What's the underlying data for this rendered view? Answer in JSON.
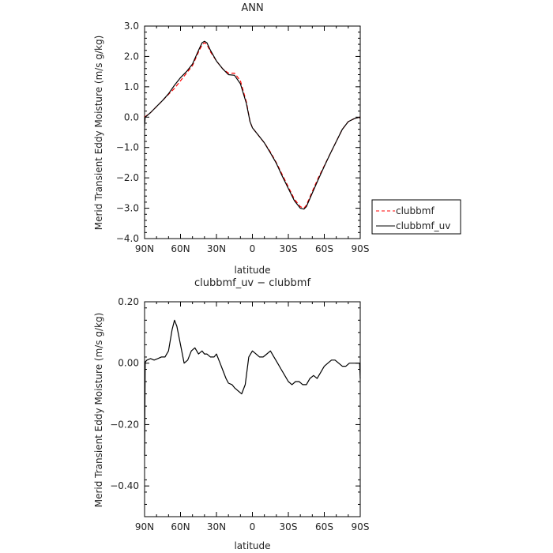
{
  "chart_data": [
    {
      "type": "line",
      "title": "ANN",
      "xlabel": "latitude",
      "ylabel": "Merid Transient Eddy Moisture (m/s g/kg)",
      "xlim": [
        90,
        -90
      ],
      "ylim": [
        -4.0,
        3.0
      ],
      "x_ticks": [
        90,
        60,
        30,
        0,
        -30,
        -60,
        -90
      ],
      "x_tick_labels": [
        "90N",
        "60N",
        "30N",
        "0",
        "30S",
        "60S",
        "90S"
      ],
      "y_ticks": [
        3.0,
        2.0,
        1.0,
        0.0,
        -1.0,
        -2.0,
        -3.0,
        -4.0
      ],
      "y_tick_labels": [
        "3.0",
        "2.0",
        "1.0",
        "0.0",
        "−1.0",
        "−2.0",
        "−3.0",
        "−4.0"
      ],
      "legend_position": "right",
      "series": [
        {
          "name": "clubbmf",
          "color": "#ff0000",
          "dash": true,
          "x": [
            90,
            85,
            80,
            75,
            70,
            65,
            60,
            55,
            50,
            45,
            42,
            40,
            38,
            35,
            30,
            25,
            20,
            15,
            10,
            5,
            2,
            0,
            -5,
            -10,
            -15,
            -20,
            -25,
            -30,
            -35,
            -40,
            -43,
            -45,
            -50,
            -55,
            -60,
            -65,
            -70,
            -75,
            -80,
            -85,
            -90
          ],
          "y": [
            0.0,
            0.15,
            0.35,
            0.55,
            0.75,
            0.95,
            1.2,
            1.45,
            1.7,
            2.15,
            2.38,
            2.45,
            2.4,
            2.15,
            1.85,
            1.6,
            1.45,
            1.45,
            1.2,
            0.5,
            -0.15,
            -0.35,
            -0.6,
            -0.85,
            -1.15,
            -1.5,
            -1.9,
            -2.3,
            -2.7,
            -2.95,
            -3.0,
            -2.9,
            -2.45,
            -2.0,
            -1.6,
            -1.2,
            -0.8,
            -0.4,
            -0.15,
            -0.05,
            0.0
          ]
        },
        {
          "name": "clubbmf_uv",
          "color": "#000000",
          "dash": false,
          "x": [
            90,
            89.5,
            85,
            80,
            75,
            70,
            65,
            60,
            55,
            50,
            45,
            42,
            40,
            38,
            35,
            30,
            25,
            20,
            15,
            10,
            5,
            2,
            0,
            -5,
            -10,
            -15,
            -20,
            -25,
            -30,
            -35,
            -40,
            -43,
            -45,
            -50,
            -55,
            -60,
            -65,
            -70,
            -75,
            -80,
            -85,
            -89.5,
            -90
          ],
          "y": [
            -0.3,
            0.0,
            0.15,
            0.35,
            0.55,
            0.77,
            1.05,
            1.3,
            1.5,
            1.75,
            2.2,
            2.45,
            2.5,
            2.45,
            2.2,
            1.85,
            1.6,
            1.4,
            1.38,
            1.1,
            0.45,
            -0.15,
            -0.35,
            -0.6,
            -0.85,
            -1.18,
            -1.52,
            -1.95,
            -2.35,
            -2.75,
            -3.0,
            -3.03,
            -2.95,
            -2.5,
            -2.05,
            -1.62,
            -1.2,
            -0.8,
            -0.4,
            -0.15,
            -0.05,
            0.0,
            -0.05
          ]
        }
      ]
    },
    {
      "type": "line",
      "title": "clubbmf_uv − clubbmf",
      "xlabel": "latitude",
      "ylabel": "Merid Transient Eddy Moisture (m/s g/kg)",
      "xlim": [
        90,
        -90
      ],
      "ylim": [
        -0.5,
        0.2
      ],
      "x_ticks": [
        90,
        60,
        30,
        0,
        -30,
        -60,
        -90
      ],
      "x_tick_labels": [
        "90N",
        "60N",
        "30N",
        "0",
        "30S",
        "60S",
        "90S"
      ],
      "y_ticks": [
        0.2,
        0.0,
        -0.2,
        -0.4
      ],
      "y_tick_labels": [
        "0.20",
        "0.00",
        "−0.20",
        "−0.40"
      ],
      "series": [
        {
          "name": "",
          "color": "#000000",
          "dash": false,
          "x": [
            90,
            89.5,
            89.2,
            88,
            85,
            82,
            79,
            76,
            73,
            70,
            67,
            65,
            63,
            60,
            57,
            54,
            51,
            48,
            45,
            42,
            40,
            38,
            35,
            32,
            30,
            27,
            25,
            22,
            20,
            17,
            15,
            12,
            9,
            6,
            3,
            0,
            -3,
            -6,
            -9,
            -12,
            -15,
            -18,
            -21,
            -24,
            -27,
            -30,
            -33,
            -36,
            -39,
            -42,
            -45,
            -48,
            -51,
            -54,
            -57,
            -60,
            -63,
            -66,
            -69,
            -72,
            -75,
            -78,
            -81,
            -84,
            -87,
            -89.5,
            -90
          ],
          "y": [
            -0.3,
            0.0,
            0.005,
            0.01,
            0.015,
            0.01,
            0.015,
            0.02,
            0.02,
            0.04,
            0.11,
            0.14,
            0.12,
            0.06,
            0.0,
            0.01,
            0.04,
            0.05,
            0.03,
            0.04,
            0.03,
            0.03,
            0.02,
            0.02,
            0.03,
            0.0,
            -0.02,
            -0.05,
            -0.065,
            -0.07,
            -0.08,
            -0.09,
            -0.1,
            -0.07,
            0.02,
            0.04,
            0.03,
            0.02,
            0.02,
            0.03,
            0.04,
            0.02,
            0.0,
            -0.02,
            -0.04,
            -0.06,
            -0.07,
            -0.06,
            -0.06,
            -0.07,
            -0.07,
            -0.05,
            -0.04,
            -0.05,
            -0.03,
            -0.01,
            0.0,
            0.01,
            0.01,
            0.0,
            -0.01,
            -0.01,
            0.0,
            0.0,
            0.0,
            0.0,
            -0.05
          ]
        }
      ]
    }
  ]
}
